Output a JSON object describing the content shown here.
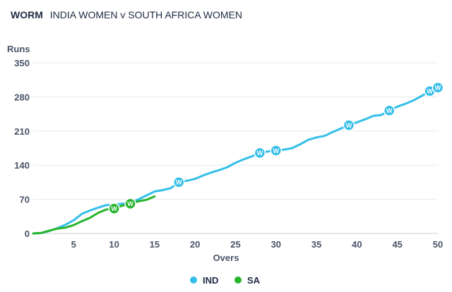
{
  "header": {
    "tag": "WORM",
    "match": "INDIA WOMEN v SOUTH AFRICA WOMEN"
  },
  "chart_data": {
    "type": "line",
    "title": "INDIA WOMEN v SOUTH AFRICA WOMEN",
    "ylabel": "Runs",
    "xlabel": "Overs",
    "ylim": [
      0,
      350
    ],
    "xlim": [
      0,
      50
    ],
    "yticks": [
      0,
      70,
      140,
      210,
      280,
      350
    ],
    "xticks": [
      5,
      10,
      15,
      20,
      25,
      30,
      35,
      40,
      45,
      50
    ],
    "legend_position": "bottom-center",
    "wicket_label": "W",
    "series": [
      {
        "name": "IND",
        "color": "#33bfe9",
        "x": [
          0,
          1,
          2,
          3,
          4,
          5,
          6,
          7,
          8,
          9,
          10,
          11,
          12,
          13,
          14,
          15,
          16,
          17,
          18,
          19,
          20,
          21,
          22,
          23,
          24,
          25,
          26,
          27,
          28,
          29,
          30,
          31,
          32,
          33,
          34,
          35,
          36,
          37,
          38,
          39,
          40,
          41,
          42,
          43,
          44,
          45,
          46,
          47,
          48,
          49,
          50
        ],
        "values": [
          0,
          1,
          5,
          11,
          18,
          27,
          40,
          47,
          53,
          58,
          59,
          61,
          62,
          70,
          78,
          86,
          89,
          93,
          105,
          108,
          112,
          119,
          125,
          130,
          136,
          145,
          152,
          158,
          165,
          168,
          170,
          172,
          175,
          183,
          192,
          197,
          200,
          208,
          215,
          222,
          228,
          234,
          241,
          243,
          252,
          260,
          266,
          273,
          282,
          292,
          299
        ],
        "wickets": [
          [
            18,
            105
          ],
          [
            28,
            165
          ],
          [
            30,
            170
          ],
          [
            39,
            222
          ],
          [
            44,
            252
          ],
          [
            49,
            292
          ],
          [
            50,
            299
          ]
        ]
      },
      {
        "name": "SA",
        "color": "#27b52b",
        "x": [
          0,
          1,
          2,
          3,
          4,
          5,
          6,
          7,
          8,
          9,
          10,
          11,
          12,
          13,
          14,
          15
        ],
        "values": [
          0,
          1,
          6,
          10,
          12,
          17,
          25,
          32,
          42,
          49,
          51,
          57,
          61,
          66,
          69,
          76
        ],
        "wickets": [
          [
            10,
            51
          ],
          [
            12,
            61
          ]
        ]
      }
    ]
  }
}
